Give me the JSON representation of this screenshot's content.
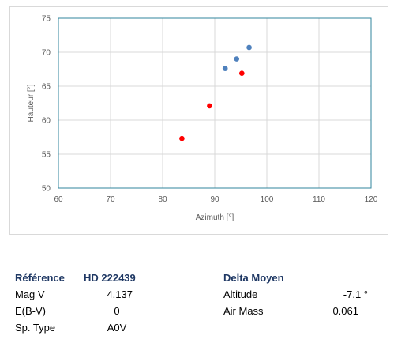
{
  "chart_data": {
    "type": "scatter",
    "xlabel": "Azimuth [°]",
    "ylabel": "Hauteur [°]",
    "xlim": [
      60,
      120
    ],
    "ylim": [
      50,
      75
    ],
    "xticks": [
      60,
      70,
      80,
      90,
      100,
      110,
      120
    ],
    "yticks": [
      50,
      55,
      60,
      65,
      70,
      75
    ],
    "grid": true,
    "series": [
      {
        "color": "#4f81bd",
        "points": [
          {
            "x": 92.0,
            "y": 67.6
          },
          {
            "x": 94.2,
            "y": 69.0
          },
          {
            "x": 96.6,
            "y": 70.7
          }
        ]
      },
      {
        "color": "#ff0000",
        "points": [
          {
            "x": 83.7,
            "y": 57.3
          },
          {
            "x": 89.0,
            "y": 62.1
          },
          {
            "x": 95.2,
            "y": 66.9
          }
        ]
      }
    ],
    "axis_color": "#31859c",
    "grid_color": "#d9d9d9"
  },
  "info": {
    "reference_label": "Référence",
    "reference_value": "HD 222439",
    "delta_label": "Delta Moyen",
    "rows_left": [
      {
        "label": "Mag V",
        "value": "4.137"
      },
      {
        "label": "E(B-V)",
        "value": "0"
      },
      {
        "label": "Sp. Type",
        "value": "A0V"
      }
    ],
    "rows_right": [
      {
        "label": "Altitude",
        "value": "-7.1 °"
      },
      {
        "label": "Air Mass",
        "value": "0.061"
      }
    ],
    "heading_color": "#1f3864"
  }
}
